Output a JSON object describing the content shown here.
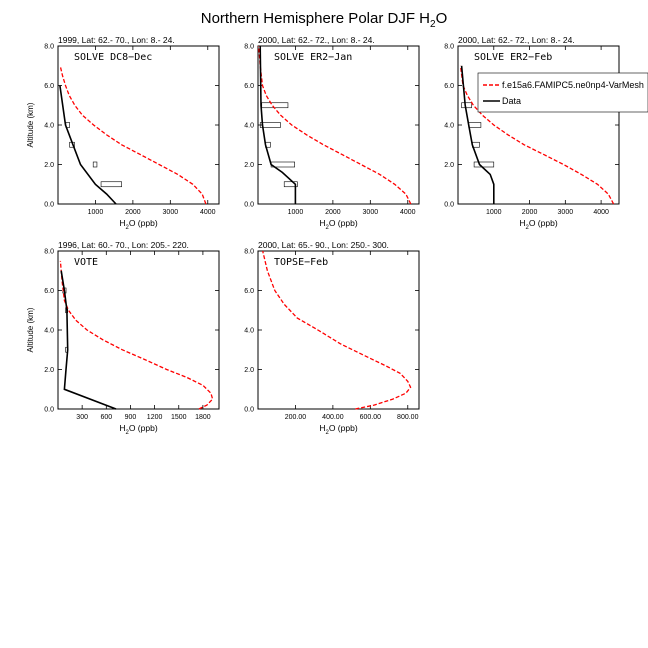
{
  "figure": {
    "title_main": "Northern Hemisphere Polar DJF H",
    "title_sub": "2",
    "title_end": "O"
  },
  "legend": {
    "model_label": "f.e15a6.FAMIPC5.ne0np4-VarMesh",
    "data_label": "Data"
  },
  "colors": {
    "model": "#ff0000",
    "data": "#000000"
  },
  "chart_data": [
    {
      "type": "line",
      "header": "1999, Lat: 62.- 70., Lon: 8.- 24.",
      "campaign": "SOLVE DC8−Dec",
      "xlabel_main": "H",
      "xlabel_sub": "2",
      "xlabel_end": "O (ppb)",
      "ylabel": "Altitude (km)",
      "xlim": [
        0,
        4300
      ],
      "xticks": [
        1000,
        2000,
        3000,
        4000
      ],
      "xticklabels": [
        "1000",
        "2000",
        "3000",
        "4000"
      ],
      "ylim": [
        0,
        8
      ],
      "yticks": [
        0,
        2,
        4,
        6,
        8
      ],
      "yticklabels": [
        "0.0",
        "2.0",
        "4.0",
        "6.0",
        "8.0"
      ],
      "model": {
        "x": [
          3950,
          3850,
          3600,
          3200,
          2700,
          2200,
          1700,
          1300,
          950,
          650,
          450,
          300,
          200,
          120,
          60
        ],
        "y": [
          0,
          0.5,
          1,
          1.5,
          2,
          2.5,
          3,
          3.5,
          4,
          4.5,
          5,
          5.5,
          6,
          6.5,
          7
        ]
      },
      "data": {
        "x": [
          1550,
          1300,
          1000,
          600,
          400,
          200,
          50
        ],
        "y": [
          0,
          0.5,
          1,
          2,
          3,
          4,
          6
        ]
      },
      "boxes": [
        {
          "x1": 1150,
          "x2": 1700,
          "y": 1
        },
        {
          "x1": 940,
          "x2": 1040,
          "y": 2
        },
        {
          "x1": 310,
          "x2": 440,
          "y": 3
        },
        {
          "x1": 210,
          "x2": 310,
          "y": 4
        }
      ]
    },
    {
      "type": "line",
      "header": "2000, Lat: 62.- 72., Lon: 8.- 24.",
      "campaign": "SOLVE ER2−Jan",
      "xlabel_main": "H",
      "xlabel_sub": "2",
      "xlabel_end": "O (ppb)",
      "ylabel": "",
      "xlim": [
        0,
        4300
      ],
      "xticks": [
        1000,
        2000,
        3000,
        4000
      ],
      "xticklabels": [
        "1000",
        "2000",
        "3000",
        "4000"
      ],
      "ylim": [
        0,
        8
      ],
      "yticks": [
        0,
        2,
        4,
        6,
        8
      ],
      "yticklabels": [
        "0.0",
        "2.0",
        "4.0",
        "6.0",
        "8.0"
      ],
      "model": {
        "x": [
          4080,
          3950,
          3650,
          3250,
          2750,
          2250,
          1750,
          1300,
          900,
          600,
          380,
          220,
          120,
          60,
          20
        ],
        "y": [
          0,
          0.5,
          1,
          1.5,
          2,
          2.5,
          3,
          3.5,
          4,
          4.5,
          5,
          5.5,
          6,
          7,
          8
        ]
      },
      "data": {
        "x": [
          1000,
          1000,
          650,
          350,
          200,
          120,
          80,
          60
        ],
        "y": [
          0,
          1,
          1.6,
          2,
          3,
          4,
          5,
          8
        ]
      },
      "boxes": [
        {
          "x1": 700,
          "x2": 1050,
          "y": 1
        },
        {
          "x1": 350,
          "x2": 980,
          "y": 2
        },
        {
          "x1": 200,
          "x2": 330,
          "y": 3
        },
        {
          "x1": 60,
          "x2": 600,
          "y": 4
        },
        {
          "x1": 100,
          "x2": 800,
          "y": 5
        }
      ]
    },
    {
      "type": "line",
      "header": "2000, Lat: 62.- 72., Lon: 8.- 24.",
      "campaign": "SOLVE ER2−Feb",
      "xlabel_main": "H",
      "xlabel_sub": "2",
      "xlabel_end": "O (ppb)",
      "ylabel": "",
      "xlim": [
        0,
        4500
      ],
      "xticks": [
        1000,
        2000,
        3000,
        4000
      ],
      "xticklabels": [
        "1000",
        "2000",
        "3000",
        "4000"
      ],
      "ylim": [
        0,
        8
      ],
      "yticks": [
        0,
        2,
        4,
        6,
        8
      ],
      "yticklabels": [
        "0.0",
        "2.0",
        "4.0",
        "6.0",
        "8.0"
      ],
      "model": {
        "x": [
          4350,
          4200,
          3900,
          3450,
          2950,
          2400,
          1850,
          1400,
          1000,
          680,
          430,
          260,
          140,
          70
        ],
        "y": [
          0,
          0.5,
          1,
          1.5,
          2,
          2.5,
          3,
          3.5,
          4,
          4.5,
          5,
          5.5,
          6,
          7
        ]
      },
      "data": {
        "x": [
          1000,
          1000,
          900,
          600,
          400,
          300,
          200,
          100
        ],
        "y": [
          0,
          1,
          1.5,
          2,
          3,
          4,
          5,
          7
        ]
      },
      "boxes": [
        {
          "x1": 450,
          "x2": 1000,
          "y": 2
        },
        {
          "x1": 400,
          "x2": 600,
          "y": 3
        },
        {
          "x1": 300,
          "x2": 640,
          "y": 4
        },
        {
          "x1": 100,
          "x2": 380,
          "y": 5
        }
      ]
    },
    {
      "type": "line",
      "header": "1996, Lat: 60.- 70., Lon: 205.- 220.",
      "campaign": "VOTE",
      "xlabel_main": "H",
      "xlabel_sub": "2",
      "xlabel_end": "O (ppb)",
      "ylabel": "Altitude (km)",
      "xlim": [
        0,
        2000
      ],
      "xticks": [
        300,
        600,
        900,
        1200,
        1500,
        1800
      ],
      "xticklabels": [
        "300",
        "600",
        "900",
        "1200",
        "1500",
        "1800"
      ],
      "ylim": [
        0,
        8
      ],
      "yticks": [
        0,
        2,
        4,
        6,
        8
      ],
      "yticklabels": [
        "0.0",
        "2.0",
        "4.0",
        "6.0",
        "8.0"
      ],
      "model": {
        "x": [
          1750,
          1850,
          1920,
          1900,
          1800,
          1600,
          1350,
          1080,
          800,
          560,
          360,
          220,
          130,
          80,
          50,
          30
        ],
        "y": [
          0,
          0.2,
          0.5,
          0.8,
          1.2,
          1.6,
          2,
          2.5,
          3,
          3.5,
          4,
          4.5,
          5,
          5.5,
          6.5,
          7.5
        ]
      },
      "data": {
        "x": [
          720,
          80,
          100,
          120,
          110,
          80,
          40
        ],
        "y": [
          0,
          1,
          2,
          3,
          5,
          6,
          7
        ]
      },
      "boxes": [
        {
          "x1": 95,
          "x2": 115,
          "y": 3
        },
        {
          "x1": 95,
          "x2": 115,
          "y": 5
        },
        {
          "x1": 60,
          "x2": 100,
          "y": 6
        }
      ]
    },
    {
      "type": "line",
      "header": "2000, Lat: 65.- 90., Lon: 250.- 300.",
      "campaign": "TOPSE−Feb",
      "xlabel_main": "H",
      "xlabel_sub": "2",
      "xlabel_end": "O (ppb)",
      "ylabel": "",
      "xlim": [
        0,
        860
      ],
      "xticks": [
        200,
        400,
        600,
        800
      ],
      "xticklabels": [
        "200.00",
        "400.00",
        "600.00",
        "800.00"
      ],
      "ylim": [
        0,
        8
      ],
      "yticks": [
        0,
        2,
        4,
        6,
        8
      ],
      "yticklabels": [
        "0.0",
        "2.0",
        "4.0",
        "6.0",
        "8.0"
      ],
      "model": {
        "x": [
          520,
          620,
          720,
          790,
          815,
          800,
          760,
          680,
          570,
          440,
          320,
          210,
          140,
          90,
          50,
          25
        ],
        "y": [
          0,
          0.2,
          0.5,
          0.8,
          1.1,
          1.4,
          1.8,
          2.2,
          2.7,
          3.3,
          4,
          4.6,
          5.3,
          6,
          7,
          8
        ]
      },
      "data": {
        "x": [],
        "y": []
      },
      "boxes": []
    }
  ]
}
